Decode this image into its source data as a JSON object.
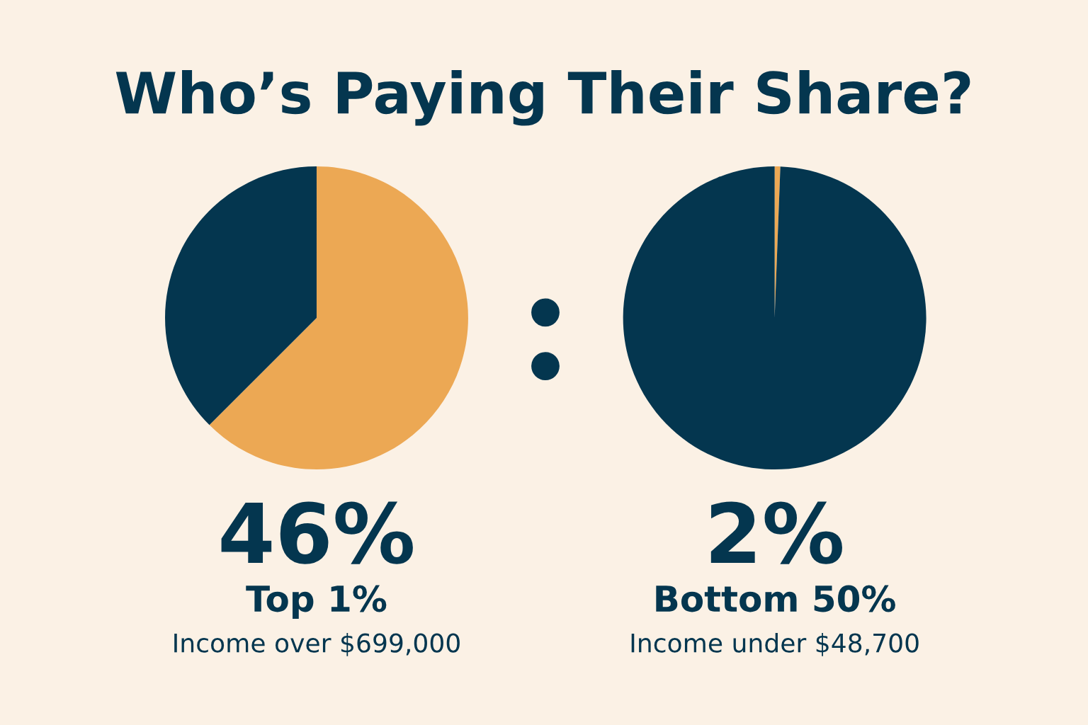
{
  "chart_data": [
    {
      "type": "pie",
      "title": "Who’s Paying Their Share?",
      "categories": [
        null,
        null
      ],
      "values": [
        62.5,
        37.5
      ],
      "colors": [
        "#eca854",
        "#04364f"
      ],
      "annotations": [
        "46%",
        "Top 1%",
        "Income over $699,000"
      ]
    },
    {
      "type": "pie",
      "categories": [
        null,
        null
      ],
      "values": [
        0.6,
        99.4
      ],
      "colors": [
        "#eca854",
        "#04364f"
      ],
      "annotations": [
        "2%",
        "Bottom 50%",
        "Income under $48,700"
      ]
    }
  ]
}
